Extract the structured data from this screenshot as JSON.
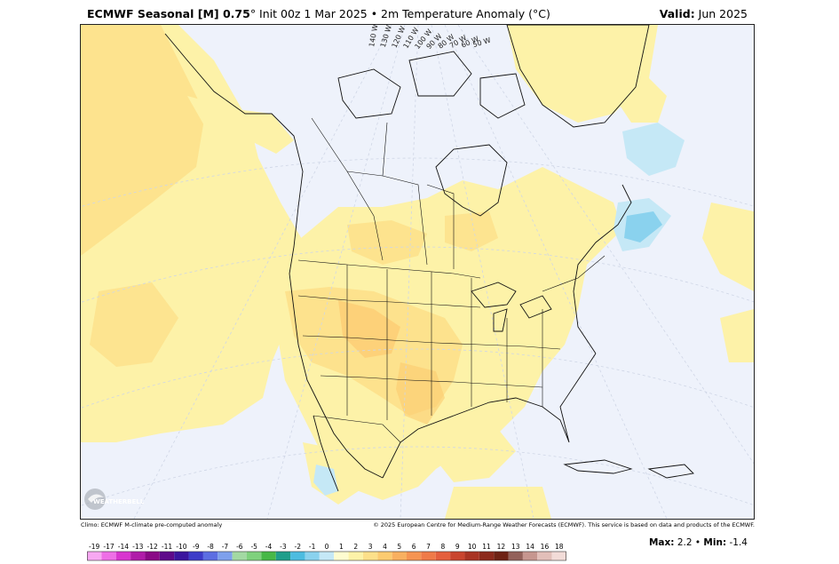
{
  "header": {
    "model": "ECMWF Seasonal [M] 0.75",
    "degree": "°",
    "init": " Init 00z 1 Mar 2025 • 2m Temperature Anomaly (°C)",
    "valid_label": "Valid:",
    "valid_value": " Jun 2025"
  },
  "meridian_labels": [
    "140 W",
    "130 W",
    "120 W",
    "110 W",
    "100 W",
    "90 W",
    "80 W",
    "70 W",
    "60 W",
    "50 W"
  ],
  "logo_text": "WEATHERBELL",
  "credits": {
    "left": "Climo: ECMWF M-climate pre-computed anomaly",
    "right": "© 2025 European Centre for Medium-Range Weather Forecasts (ECMWF). This service is based on data and products of the ECMWF."
  },
  "colorbar": {
    "labels": [
      "-19",
      "-17",
      "-14",
      "-13",
      "-12",
      "-11",
      "-10",
      "-9",
      "-8",
      "-7",
      "-6",
      "-5",
      "-4",
      "-3",
      "-2",
      "-1",
      "0",
      "1",
      "2",
      "3",
      "4",
      "5",
      "6",
      "7",
      "8",
      "9",
      "10",
      "11",
      "12",
      "13",
      "14",
      "16",
      "18"
    ],
    "colors": [
      "#f7a8f2",
      "#ee6fe6",
      "#d836cf",
      "#b01ca9",
      "#8a0a86",
      "#5e0a8a",
      "#3b169e",
      "#3d3cc8",
      "#5c6ee2",
      "#7ea0ec",
      "#a3d9a3",
      "#7fd17d",
      "#47b847",
      "#1f9e8b",
      "#4cbce0",
      "#8ad2ee",
      "#c5e8f6",
      "#fefcd0",
      "#fdf2a8",
      "#fde08a",
      "#fccb70",
      "#f8b060",
      "#f59452",
      "#ef7a48",
      "#e45f3d",
      "#c9452f",
      "#a93424",
      "#8c2a1c",
      "#6e2214",
      "#93615a",
      "#c6968f",
      "#e2bfb9",
      "#f2dcd8"
    ]
  },
  "stats": {
    "max_label": "Max:",
    "max_value": "2.2",
    "min_label": "Min:",
    "min_value": "-1.4"
  }
}
